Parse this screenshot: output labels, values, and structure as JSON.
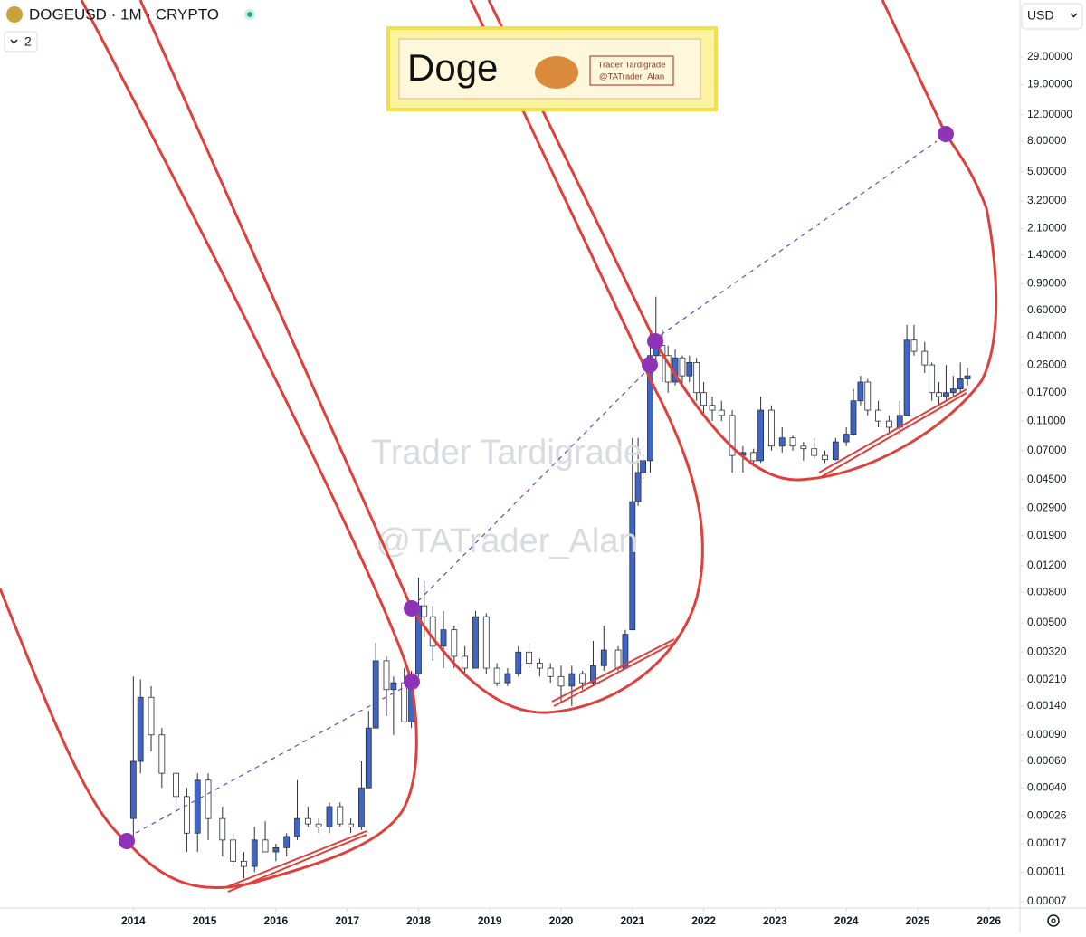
{
  "header": {
    "symbol": "DOGEUSD · 1M · CRYPTO",
    "indicator_count": "2",
    "currency": "USD"
  },
  "banner": {
    "title": "Doge",
    "author": "Trader Tardigrade",
    "handle": "@TATrader_Alan"
  },
  "watermark": [
    "Trader Tardigrade",
    "@TATrader_Alan"
  ],
  "chart_data": {
    "type": "candlestick",
    "log_scale": true,
    "up_color": "#3f66c6",
    "down_color": "#ffffff",
    "xlim": [
      2012.13,
      2026.41
    ],
    "xticks": [
      2014,
      2015,
      2016,
      2017,
      2018,
      2019,
      2020,
      2021,
      2022,
      2023,
      2024,
      2025,
      2026
    ],
    "ylim": [
      6.35e-05,
      69.5
    ],
    "yticks": [
      {
        "value": 29,
        "label": "29.00000"
      },
      {
        "value": 19,
        "label": "19.00000"
      },
      {
        "value": 12,
        "label": "12.00000"
      },
      {
        "value": 8,
        "label": "8.00000"
      },
      {
        "value": 5,
        "label": "5.00000"
      },
      {
        "value": 3.2,
        "label": "3.20000"
      },
      {
        "value": 2.1,
        "label": "2.10000"
      },
      {
        "value": 1.4,
        "label": "1.40000"
      },
      {
        "value": 0.9,
        "label": "0.90000"
      },
      {
        "value": 0.6,
        "label": "0.60000"
      },
      {
        "value": 0.4,
        "label": "0.40000"
      },
      {
        "value": 0.26,
        "label": "0.26000"
      },
      {
        "value": 0.17,
        "label": "0.17000"
      },
      {
        "value": 0.11,
        "label": "0.11000"
      },
      {
        "value": 0.07,
        "label": "0.07000"
      },
      {
        "value": 0.045,
        "label": "0.04500"
      },
      {
        "value": 0.029,
        "label": "0.02900"
      },
      {
        "value": 0.019,
        "label": "0.01900"
      },
      {
        "value": 0.012,
        "label": "0.01200"
      },
      {
        "value": 0.008,
        "label": "0.00800"
      },
      {
        "value": 0.005,
        "label": "0.00500"
      },
      {
        "value": 0.0032,
        "label": "0.00320"
      },
      {
        "value": 0.0021,
        "label": "0.00210"
      },
      {
        "value": 0.0014,
        "label": "0.00140"
      },
      {
        "value": 0.0009,
        "label": "0.00090"
      },
      {
        "value": 0.0006,
        "label": "0.00060"
      },
      {
        "value": 0.0004,
        "label": "0.00040"
      },
      {
        "value": 0.00026,
        "label": "0.00026"
      },
      {
        "value": 0.00017,
        "label": "0.00017"
      },
      {
        "value": 0.00011,
        "label": "0.00011"
      },
      {
        "value": 7e-05,
        "label": "0.00007"
      }
    ],
    "x": [
      2014.0,
      2014.1,
      2014.25,
      2014.4,
      2014.6,
      2014.75,
      2014.9,
      2015.05,
      2015.25,
      2015.4,
      2015.55,
      2015.7,
      2015.85,
      2016.0,
      2016.15,
      2016.3,
      2016.45,
      2016.6,
      2016.75,
      2016.9,
      2017.05,
      2017.2,
      2017.3,
      2017.4,
      2017.55,
      2017.65,
      2017.8,
      2017.9,
      2018.0,
      2018.08,
      2018.2,
      2018.35,
      2018.5,
      2018.65,
      2018.8,
      2018.95,
      2019.1,
      2019.25,
      2019.4,
      2019.55,
      2019.7,
      2019.85,
      2020.0,
      2020.15,
      2020.3,
      2020.45,
      2020.6,
      2020.8,
      2020.9,
      2021.0,
      2021.08,
      2021.15,
      2021.25,
      2021.33,
      2021.42,
      2021.5,
      2021.6,
      2021.7,
      2021.8,
      2021.9,
      2022.0,
      2022.12,
      2022.25,
      2022.4,
      2022.55,
      2022.7,
      2022.8,
      2022.95,
      2023.1,
      2023.25,
      2023.4,
      2023.55,
      2023.7,
      2023.85,
      2024.0,
      2024.1,
      2024.2,
      2024.3,
      2024.45,
      2024.6,
      2024.75,
      2024.85,
      2024.95,
      2025.1,
      2025.2,
      2025.3,
      2025.4,
      2025.5,
      2025.6,
      2025.7
    ],
    "open": [
      0.00025,
      0.0006,
      0.0016,
      0.0009,
      0.0005,
      0.00035,
      0.0002,
      0.00045,
      0.00025,
      0.00018,
      0.00013,
      0.00012,
      0.00018,
      0.00015,
      0.00016,
      0.00019,
      0.00025,
      0.00023,
      0.00022,
      0.0003,
      0.00023,
      0.00022,
      0.0004,
      0.001,
      0.0028,
      0.0018,
      0.002,
      0.0011,
      0.0023,
      0.0065,
      0.0055,
      0.0035,
      0.0045,
      0.003,
      0.0025,
      0.0055,
      0.0025,
      0.002,
      0.0023,
      0.0032,
      0.0027,
      0.0025,
      0.0022,
      0.0019,
      0.0023,
      0.002,
      0.0026,
      0.0033,
      0.0025,
      0.0045,
      0.032,
      0.05,
      0.06,
      0.3,
      0.35,
      0.3,
      0.2,
      0.29,
      0.22,
      0.27,
      0.17,
      0.14,
      0.13,
      0.12,
      0.065,
      0.068,
      0.06,
      0.13,
      0.075,
      0.085,
      0.075,
      0.072,
      0.065,
      0.061,
      0.08,
      0.09,
      0.15,
      0.2,
      0.13,
      0.11,
      0.1,
      0.12,
      0.38,
      0.32,
      0.26,
      0.17,
      0.16,
      0.17,
      0.18,
      0.21
    ],
    "high": [
      0.0022,
      0.0021,
      0.0019,
      0.001,
      0.0005,
      0.0004,
      0.0005,
      0.0005,
      0.0003,
      0.0002,
      0.00015,
      0.00022,
      0.00024,
      0.00017,
      0.0002,
      0.00045,
      0.0003,
      0.00025,
      0.00032,
      0.00032,
      0.00025,
      0.0006,
      0.0013,
      0.0037,
      0.003,
      0.0022,
      0.0025,
      0.0024,
      0.01,
      0.0095,
      0.0065,
      0.006,
      0.0048,
      0.0035,
      0.006,
      0.0058,
      0.0027,
      0.0025,
      0.0035,
      0.0036,
      0.0029,
      0.0027,
      0.0026,
      0.0026,
      0.0024,
      0.0038,
      0.0048,
      0.0035,
      0.0045,
      0.085,
      0.085,
      0.066,
      0.45,
      0.74,
      0.45,
      0.35,
      0.33,
      0.3,
      0.3,
      0.29,
      0.2,
      0.16,
      0.15,
      0.13,
      0.075,
      0.072,
      0.16,
      0.14,
      0.1,
      0.088,
      0.08,
      0.085,
      0.07,
      0.085,
      0.1,
      0.18,
      0.22,
      0.21,
      0.15,
      0.12,
      0.15,
      0.48,
      0.48,
      0.37,
      0.27,
      0.2,
      0.26,
      0.22,
      0.27,
      0.25
    ],
    "low": [
      0.00017,
      0.0005,
      0.0007,
      0.0004,
      0.0003,
      0.00015,
      0.00015,
      0.00018,
      0.00014,
      0.00012,
      0.0001,
      0.00011,
      0.00016,
      0.00013,
      0.00014,
      0.00018,
      0.00022,
      0.0002,
      0.0002,
      0.00022,
      0.0002,
      0.00021,
      0.0004,
      0.001,
      0.0012,
      0.0009,
      0.0011,
      0.001,
      0.0022,
      0.004,
      0.0028,
      0.0025,
      0.0025,
      0.0022,
      0.0025,
      0.0023,
      0.0019,
      0.0019,
      0.0022,
      0.0025,
      0.0022,
      0.002,
      0.0015,
      0.0014,
      0.0018,
      0.0019,
      0.0024,
      0.0024,
      0.0025,
      0.0045,
      0.03,
      0.045,
      0.05,
      0.26,
      0.2,
      0.17,
      0.19,
      0.19,
      0.2,
      0.15,
      0.12,
      0.11,
      0.11,
      0.05,
      0.05,
      0.055,
      0.058,
      0.07,
      0.068,
      0.07,
      0.06,
      0.062,
      0.058,
      0.06,
      0.075,
      0.088,
      0.14,
      0.12,
      0.1,
      0.09,
      0.09,
      0.12,
      0.3,
      0.23,
      0.15,
      0.14,
      0.15,
      0.16,
      0.17,
      0.19
    ],
    "close": [
      0.0006,
      0.0016,
      0.0009,
      0.0005,
      0.00035,
      0.0002,
      0.00045,
      0.00025,
      0.00018,
      0.00013,
      0.00012,
      0.00018,
      0.00015,
      0.00016,
      0.00019,
      0.00025,
      0.00023,
      0.00022,
      0.0003,
      0.00023,
      0.00022,
      0.0004,
      0.001,
      0.0028,
      0.0018,
      0.002,
      0.0011,
      0.0023,
      0.0065,
      0.0055,
      0.0035,
      0.0045,
      0.003,
      0.0025,
      0.0055,
      0.0025,
      0.002,
      0.0023,
      0.0032,
      0.0027,
      0.0025,
      0.0022,
      0.0019,
      0.0023,
      0.002,
      0.0026,
      0.0033,
      0.0025,
      0.0042,
      0.032,
      0.05,
      0.06,
      0.3,
      0.35,
      0.3,
      0.2,
      0.29,
      0.22,
      0.27,
      0.17,
      0.14,
      0.13,
      0.12,
      0.065,
      0.068,
      0.06,
      0.13,
      0.075,
      0.085,
      0.075,
      0.072,
      0.065,
      0.061,
      0.08,
      0.09,
      0.15,
      0.2,
      0.13,
      0.11,
      0.1,
      0.12,
      0.38,
      0.32,
      0.26,
      0.17,
      0.16,
      0.17,
      0.18,
      0.21,
      0.22
    ]
  }
}
